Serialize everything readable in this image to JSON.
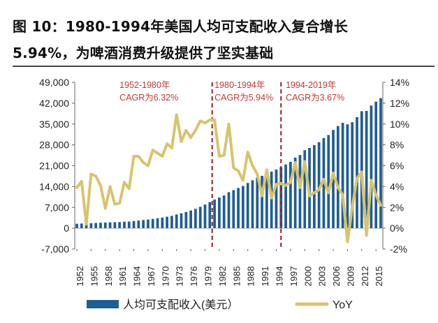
{
  "title": {
    "line1": "图 10：1980-1994年美国人均可支配收入复合增长",
    "line2": "5.94%，为啤酒消费升级提供了坚实基础"
  },
  "chart_data": {
    "type": "bar",
    "x": [
      1952,
      1953,
      1954,
      1955,
      1956,
      1957,
      1958,
      1959,
      1960,
      1961,
      1962,
      1963,
      1964,
      1965,
      1966,
      1967,
      1968,
      1969,
      1970,
      1971,
      1972,
      1973,
      1974,
      1975,
      1976,
      1977,
      1978,
      1979,
      1980,
      1981,
      1982,
      1983,
      1984,
      1985,
      1986,
      1987,
      1988,
      1989,
      1990,
      1991,
      1992,
      1993,
      1994,
      1995,
      1996,
      1997,
      1998,
      1999,
      2000,
      2001,
      2002,
      2003,
      2004,
      2005,
      2006,
      2007,
      2008,
      2009,
      2010,
      2011,
      2012,
      2013,
      2014,
      2015,
      2016
    ],
    "xtick_labels": [
      "1952",
      "1955",
      "1958",
      "1961",
      "1964",
      "1967",
      "1970",
      "1973",
      "1976",
      "1979",
      "1982",
      "1985",
      "1988",
      "1991",
      "1994",
      "1997",
      "2000",
      "2003",
      "2006",
      "2009",
      "2012",
      "2015"
    ],
    "series": [
      {
        "name": "人均可支配收入(美元）",
        "type": "bar",
        "axis": "left",
        "color": "#1f5d96",
        "values": [
          1500,
          1570,
          1600,
          1690,
          1770,
          1850,
          1900,
          1980,
          2020,
          2070,
          2170,
          2250,
          2410,
          2570,
          2740,
          2900,
          3130,
          3360,
          3590,
          3860,
          4140,
          4620,
          5010,
          5470,
          5960,
          6520,
          7200,
          7950,
          8790,
          9640,
          10290,
          11000,
          12100,
          12800,
          13500,
          14200,
          15200,
          16100,
          17000,
          17600,
          18500,
          19000,
          19700,
          20500,
          21400,
          22300,
          23700,
          24600,
          26200,
          27000,
          27900,
          28900,
          30300,
          31300,
          33000,
          34300,
          35400,
          34900,
          35600,
          37300,
          39300,
          39400,
          41200,
          42500,
          43700
        ]
      },
      {
        "name": "YoY",
        "type": "line",
        "axis": "right",
        "color": "#d8c46d",
        "values": [
          3.9,
          4.5,
          0.4,
          5.2,
          5.0,
          4.1,
          1.9,
          4.0,
          2.3,
          2.4,
          4.4,
          3.8,
          6.9,
          6.9,
          6.3,
          6.0,
          7.5,
          7.2,
          6.9,
          8.1,
          7.7,
          10.9,
          8.3,
          9.4,
          8.7,
          9.4,
          10.3,
          10.1,
          10.4,
          10.4,
          6.9,
          7.0,
          10.0,
          5.8,
          5.5,
          4.6,
          7.3,
          6.0,
          5.2,
          3.1,
          5.6,
          2.9,
          4.2,
          4.3,
          4.1,
          4.4,
          6.3,
          3.9,
          6.4,
          3.1,
          3.4,
          3.7,
          4.7,
          3.4,
          5.3,
          3.9,
          3.2,
          -1.3,
          2.0,
          4.8,
          5.4,
          -0.7,
          4.6,
          3.2,
          2.2
        ]
      }
    ],
    "y_left": {
      "ticks": [
        -7000,
        0,
        7000,
        14000,
        21000,
        28000,
        35000,
        42000,
        49000
      ],
      "tick_labels": [
        "-7,000",
        "0",
        "7,000",
        "14,000",
        "21,000",
        "28,000",
        "35,000",
        "42,000",
        "49,000"
      ],
      "range": [
        -7000,
        49000
      ]
    },
    "y_right": {
      "ticks": [
        -2,
        0,
        2,
        4,
        6,
        8,
        10,
        12,
        14
      ],
      "tick_labels": [
        "-2%",
        "0%",
        "2%",
        "4%",
        "6%",
        "8%",
        "10%",
        "12%",
        "14%"
      ],
      "range": [
        -2,
        14
      ]
    },
    "period_dividers": [
      1980.5,
      1995.0
    ],
    "annotations": [
      {
        "lines": [
          "1952-1980年",
          "CAGR为6.32%"
        ],
        "color": "#c0392b",
        "near_year": 1961
      },
      {
        "lines": [
          "1980-1994年",
          "CAGR为5.94%"
        ],
        "color": "#c0392b",
        "near_year": 1981
      },
      {
        "lines": [
          "1994-2019年",
          "CAGR为3.67%"
        ],
        "color": "#c0392b",
        "near_year": 1996
      }
    ],
    "legend_position": "bottom",
    "grid": false
  }
}
